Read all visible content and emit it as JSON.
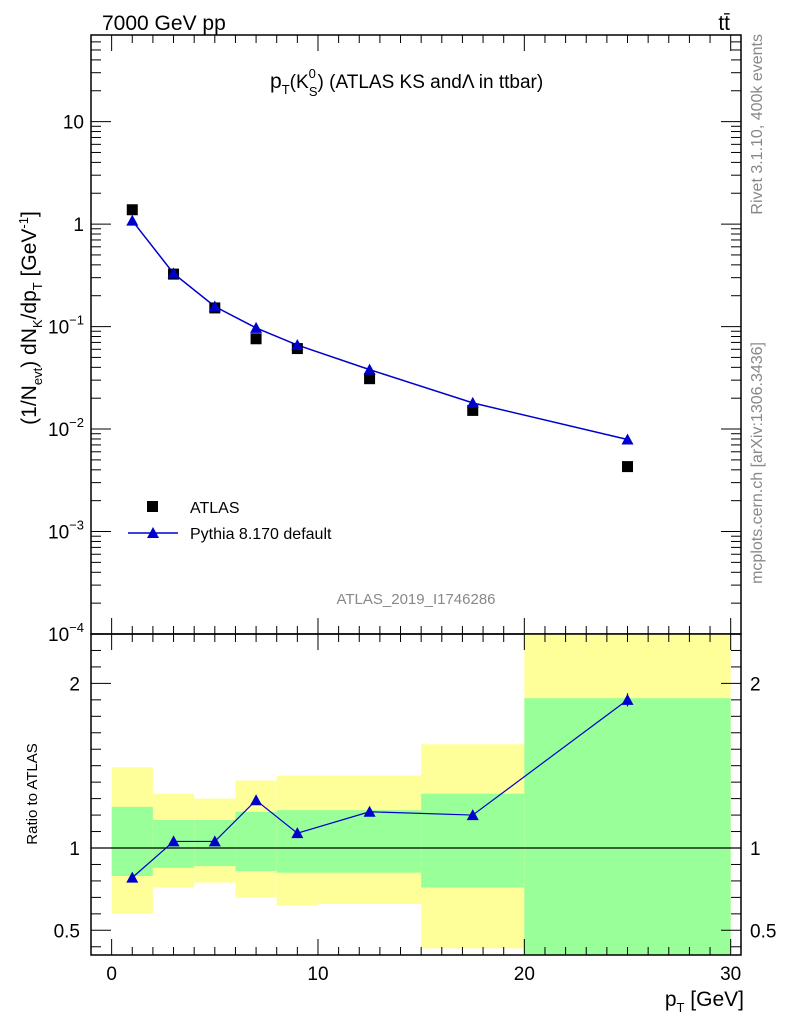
{
  "header": {
    "left": "7000 GeV pp",
    "right": "tt̄"
  },
  "plot_title": {
    "pre": "p",
    "sub_t": "T",
    "open": "(K",
    "sup_0": "0",
    "sub_s": "S",
    "close": ")",
    "text": " (ATLAS KS andΛ in ttbar)"
  },
  "side_labels": {
    "rivet": "Rivet 3.1.10,  400k events",
    "mcplots": "mcplots.cern.ch [arXiv:1306.3436]"
  },
  "analysis_id": "ATLAS_2019_I1746286",
  "axes": {
    "ylabel_top": {
      "a": "(1/N",
      "a_sub": "evt",
      "b": ") dN",
      "b_sub": "K",
      "c": "/dp",
      "c_sub": "T",
      "d": " [GeV",
      "d_sup": "-1",
      "e": "]"
    },
    "ylabel_bottom": "Ratio to ATLAS",
    "xlabel": {
      "p": "p",
      "sub": "T",
      "unit": " [GeV]"
    }
  },
  "legend": {
    "data": "ATLAS",
    "mc": "Pythia 8.170 default"
  },
  "colors": {
    "mc": "#0000cc",
    "band_inner": "#99ff99",
    "band_outer": "#ffff99",
    "data": "#000000"
  },
  "chart_data": [
    {
      "type": "scatter",
      "panel": "main",
      "y_scale": "log",
      "xlim": [
        -1,
        30.5
      ],
      "ylim": [
        0.0001,
        70
      ],
      "x_ticks": [
        0,
        10,
        20,
        30
      ],
      "y_tick_labels": [
        {
          "value": 10,
          "base": "10",
          "exp": ""
        },
        {
          "value": 1,
          "base": "1",
          "exp": ""
        },
        {
          "value": 0.1,
          "base": "10",
          "exp": "−1"
        },
        {
          "value": 0.01,
          "base": "10",
          "exp": "−2"
        },
        {
          "value": 0.001,
          "base": "10",
          "exp": "−3"
        },
        {
          "value": 0.0001,
          "base": "10",
          "exp": "−4"
        }
      ],
      "series": [
        {
          "name": "ATLAS",
          "marker": "square",
          "x": [
            1,
            3,
            5,
            7,
            9,
            12.5,
            17.5,
            25
          ],
          "y": [
            1.38,
            0.325,
            0.152,
            0.076,
            0.061,
            0.031,
            0.0152,
            0.0043
          ]
        },
        {
          "name": "Pythia 8.170 default",
          "marker": "triangle",
          "x": [
            1,
            3,
            5,
            7,
            9,
            12.5,
            17.5,
            25
          ],
          "y": [
            1.08,
            0.33,
            0.157,
            0.097,
            0.066,
            0.038,
            0.018,
            0.0079
          ]
        }
      ]
    },
    {
      "type": "line",
      "panel": "ratio",
      "xlim": [
        -1,
        30.5
      ],
      "ylim": [
        0.35,
        2.3
      ],
      "y_ticks": [
        0.5,
        1,
        2
      ],
      "y_tick_labels": [
        "0.5",
        "1",
        "2"
      ],
      "x_ticks": [
        0,
        10,
        20,
        30
      ],
      "x_tick_labels": [
        "0",
        "10",
        "20",
        "30"
      ],
      "reference": 1,
      "bins": [
        {
          "lo": 0,
          "hi": 2,
          "inner": [
            0.83,
            1.25
          ],
          "outer": [
            0.6,
            1.49
          ]
        },
        {
          "lo": 2,
          "hi": 4,
          "inner": [
            0.88,
            1.17
          ],
          "outer": [
            0.76,
            1.33
          ]
        },
        {
          "lo": 4,
          "hi": 6,
          "inner": [
            0.89,
            1.17
          ],
          "outer": [
            0.79,
            1.3
          ]
        },
        {
          "lo": 6,
          "hi": 8,
          "inner": [
            0.86,
            1.22
          ],
          "outer": [
            0.7,
            1.41
          ]
        },
        {
          "lo": 8,
          "hi": 10,
          "inner": [
            0.85,
            1.23
          ],
          "outer": [
            0.65,
            1.44
          ]
        },
        {
          "lo": 10,
          "hi": 15,
          "inner": [
            0.85,
            1.23
          ],
          "outer": [
            0.66,
            1.44
          ]
        },
        {
          "lo": 15,
          "hi": 20,
          "inner": [
            0.76,
            1.33
          ],
          "outer": [
            0.39,
            1.63
          ]
        },
        {
          "lo": 20,
          "hi": 30,
          "inner": [
            0.35,
            1.91
          ],
          "outer": [
            0.35,
            2.3
          ]
        }
      ],
      "series": [
        {
          "name": "Pythia 8.170 default",
          "x": [
            1,
            3,
            5,
            7,
            9,
            12.5,
            17.5,
            25
          ],
          "y": [
            0.82,
            1.04,
            1.04,
            1.29,
            1.09,
            1.22,
            1.2,
            1.9
          ]
        }
      ]
    }
  ]
}
